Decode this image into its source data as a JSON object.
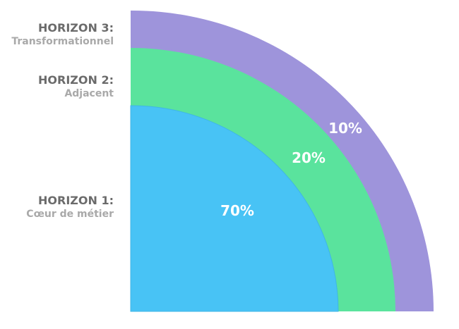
{
  "horizons": [
    {
      "title": "HORIZON 3:",
      "subtitle": "Transformationnel",
      "percent": "10%",
      "color": "#9e94db"
    },
    {
      "title": "HORIZON 2:",
      "subtitle": "Adjacent",
      "percent": "20%",
      "color": "#5ae39d"
    },
    {
      "title": "HORIZON 1:",
      "subtitle": "Cœur de métier",
      "percent": "70%",
      "color": "#48c3f5"
    }
  ]
}
